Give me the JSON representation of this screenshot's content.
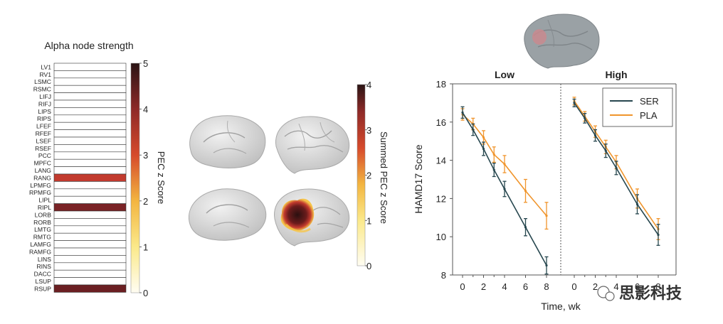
{
  "panel_a": {
    "title": "Alpha node strength",
    "colorbar_label": "PEC z Score",
    "colorbar_ticks": [
      "0",
      "1",
      "2",
      "3",
      "4",
      "5"
    ]
  },
  "panel_b": {
    "colorbar_label": "Summed PEC z Score",
    "colorbar_ticks": [
      "0",
      "1",
      "2",
      "3",
      "4"
    ]
  },
  "colors": {
    "ser": "#27474f",
    "pla": "#f0952c",
    "heat_high": "#7a2326",
    "heat_mid": "#c23a2e",
    "brain": "#d9d9d9",
    "brain_inset": "#9aa1a5"
  },
  "watermark": "思影科技",
  "chart_data": [
    {
      "type": "heatmap",
      "title": "Alpha node strength",
      "rows": [
        "LV1",
        "RV1",
        "LSMC",
        "RSMC",
        "LIFJ",
        "RIFJ",
        "LIPS",
        "RIPS",
        "LFEF",
        "RFEF",
        "LSEF",
        "RSEF",
        "PCC",
        "MPFC",
        "LANG",
        "RANG",
        "LPMFG",
        "RPMFG",
        "LIPL",
        "RIPL",
        "LORB",
        "RORB",
        "LMTG",
        "RMTG",
        "LAMFG",
        "RAMFG",
        "LINS",
        "RINS",
        "DACC",
        "LSUP",
        "RSUP"
      ],
      "values": [
        0,
        0,
        0,
        0,
        0,
        0,
        0,
        0,
        0,
        0,
        0,
        0,
        0,
        0,
        0,
        3.8,
        0,
        0,
        0,
        4.0,
        0,
        0,
        0,
        0,
        0,
        0,
        0,
        0,
        0,
        0,
        4.4
      ],
      "colorbar": {
        "label": "PEC z Score",
        "range": [
          0,
          5
        ]
      }
    },
    {
      "type": "line",
      "title": "",
      "ylabel": "HAMD17 Score",
      "xlabel": "Time, wk",
      "ylim": [
        8,
        18
      ],
      "yticks": [
        "8",
        "10",
        "12",
        "14",
        "16",
        "18"
      ],
      "legend": {
        "position": "top-right",
        "entries": [
          "SER",
          "PLA"
        ]
      },
      "groups": [
        {
          "name": "Low",
          "x": [
            0,
            1,
            2,
            3,
            4,
            6,
            8
          ],
          "xticks": [
            "0",
            "2",
            "4",
            "6",
            "8"
          ],
          "series": [
            {
              "name": "SER",
              "values": [
                16.5,
                15.6,
                14.6,
                13.5,
                12.5,
                10.5,
                8.5
              ],
              "errors": [
                0.3,
                0.3,
                0.35,
                0.35,
                0.4,
                0.45,
                0.45
              ]
            },
            {
              "name": "PLA",
              "values": [
                16.4,
                15.9,
                15.2,
                14.3,
                13.8,
                12.4,
                11.1
              ],
              "errors": [
                0.3,
                0.3,
                0.35,
                0.4,
                0.45,
                0.6,
                0.7
              ]
            }
          ]
        },
        {
          "name": "High",
          "x": [
            0,
            1,
            2,
            3,
            4,
            6,
            8
          ],
          "xticks": [
            "0",
            "2",
            "4",
            "6",
            "8"
          ],
          "series": [
            {
              "name": "SER",
              "values": [
                17.0,
                16.2,
                15.3,
                14.5,
                13.6,
                11.7,
                10.1
              ],
              "errors": [
                0.2,
                0.25,
                0.3,
                0.35,
                0.35,
                0.5,
                0.55
              ]
            },
            {
              "name": "PLA",
              "values": [
                17.1,
                16.3,
                15.5,
                14.7,
                13.9,
                12.0,
                10.4
              ],
              "errors": [
                0.2,
                0.25,
                0.3,
                0.35,
                0.35,
                0.5,
                0.55
              ]
            }
          ]
        }
      ]
    }
  ]
}
